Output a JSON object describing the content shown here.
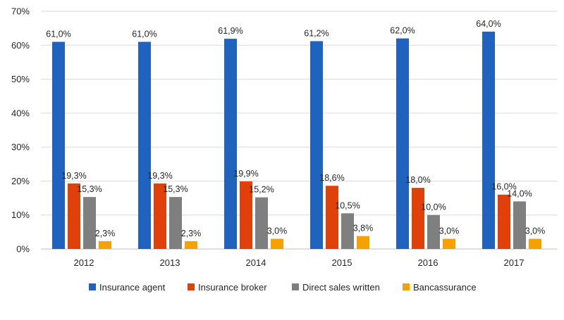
{
  "chart_data": {
    "type": "bar",
    "title": "",
    "xlabel": "",
    "ylabel": "",
    "categories": [
      "2012",
      "2013",
      "2014",
      "2015",
      "2016",
      "2017"
    ],
    "series": [
      {
        "name": "Insurance agent",
        "color": "#1F63BE",
        "values": [
          61.0,
          61.0,
          61.9,
          61.2,
          62.0,
          64.0
        ],
        "labels": [
          "61,0%",
          "61,0%",
          "61,9%",
          "61,2%",
          "62,0%",
          "64,0%"
        ]
      },
      {
        "name": "Insurance broker",
        "color": "#E04009",
        "values": [
          19.3,
          19.3,
          19.9,
          18.6,
          18.0,
          16.0
        ],
        "labels": [
          "19,3%",
          "19,3%",
          "19,9%",
          "18,6%",
          "18,0%",
          "16,0%"
        ]
      },
      {
        "name": "Direct sales written",
        "color": "#7F7F7F",
        "values": [
          15.3,
          15.3,
          15.2,
          10.5,
          10.0,
          14.0
        ],
        "labels": [
          "15,3%",
          "15,3%",
          "15,2%",
          "10,5%",
          "10,0%",
          "14,0%"
        ]
      },
      {
        "name": "Bancassurance",
        "color": "#F5A200",
        "values": [
          2.3,
          2.3,
          3.0,
          3.8,
          3.0,
          3.0
        ],
        "labels": [
          "2,3%",
          "2,3%",
          "3,0%",
          "3,8%",
          "3,0%",
          "3,0%"
        ]
      }
    ],
    "ylim": [
      0,
      70
    ],
    "yticks": [
      0,
      10,
      20,
      30,
      40,
      50,
      60,
      70
    ],
    "ytick_labels": [
      "0%",
      "10%",
      "20%",
      "30%",
      "40%",
      "50%",
      "60%",
      "70%"
    ],
    "grid": true,
    "legend_position": "bottom"
  }
}
